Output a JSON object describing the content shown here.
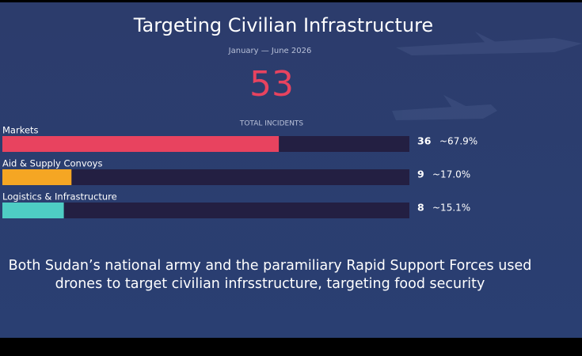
{
  "chart_data": {
    "type": "bar",
    "title": "Targeting Civilian Infrastructure",
    "subtitle": "January — June 2026",
    "total": 53,
    "total_label": "TOTAL INCIDENTS",
    "categories": [
      "Markets",
      "Aid & Supply Convoys",
      "Logistics & Infrastructure"
    ],
    "values": [
      36,
      9,
      8
    ],
    "shares": [
      67.9,
      17.0,
      15.1
    ],
    "share_labels": [
      "~67.9%",
      "~17.0%",
      "~15.1%"
    ],
    "colors": [
      "#e8435f",
      "#f5a623",
      "#4ecdc4"
    ],
    "caption": "Both Sudan’s national army and the paramiliary Rapid Support Forces used drones to target civilian infrsstructure, targeting food security"
  }
}
